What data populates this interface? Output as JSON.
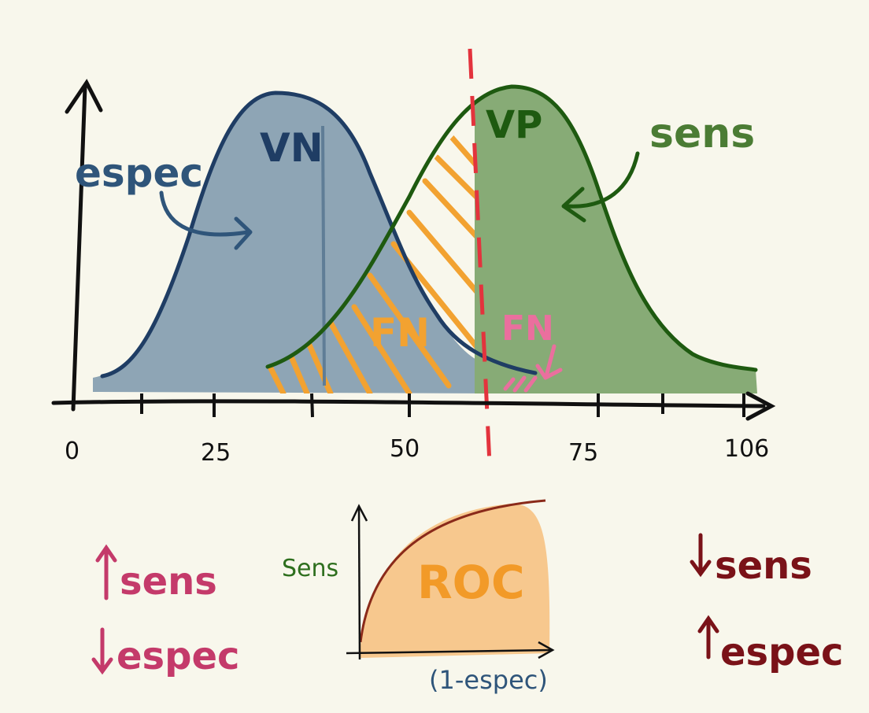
{
  "distribution_plot": {
    "negative_label": "VN",
    "positive_label": "VP",
    "false_negative_label_overlap": "FN",
    "false_negative_label_right": "FN",
    "annotation_left": "espec",
    "annotation_right": "sens",
    "x_ticks": [
      "0",
      "25",
      "50",
      "75",
      "106"
    ]
  },
  "roc": {
    "title": "ROC",
    "ylabel": "Sens",
    "xlabel": "(1-espec)"
  },
  "notes": {
    "left_line1": "sens",
    "left_line2": "espec",
    "right_line1": "sens",
    "right_line2": "espec"
  },
  "colors": {
    "background": "#f8f7ec",
    "negative_fill": "#8ea5b5",
    "negative_stroke": "#1f3d64",
    "positive_fill": "#87ab76",
    "positive_stroke": "#1e5a10",
    "hatch": "#f2a231",
    "threshold": "#e3333d",
    "fn_pink": "#ea6f9e",
    "left_note": "#c43a6a",
    "right_note": "#7a1218",
    "roc_fill": "#f7c88e",
    "roc_text": "#f29a28",
    "roc_curve": "#8a2a1a",
    "axis": "#111111"
  }
}
